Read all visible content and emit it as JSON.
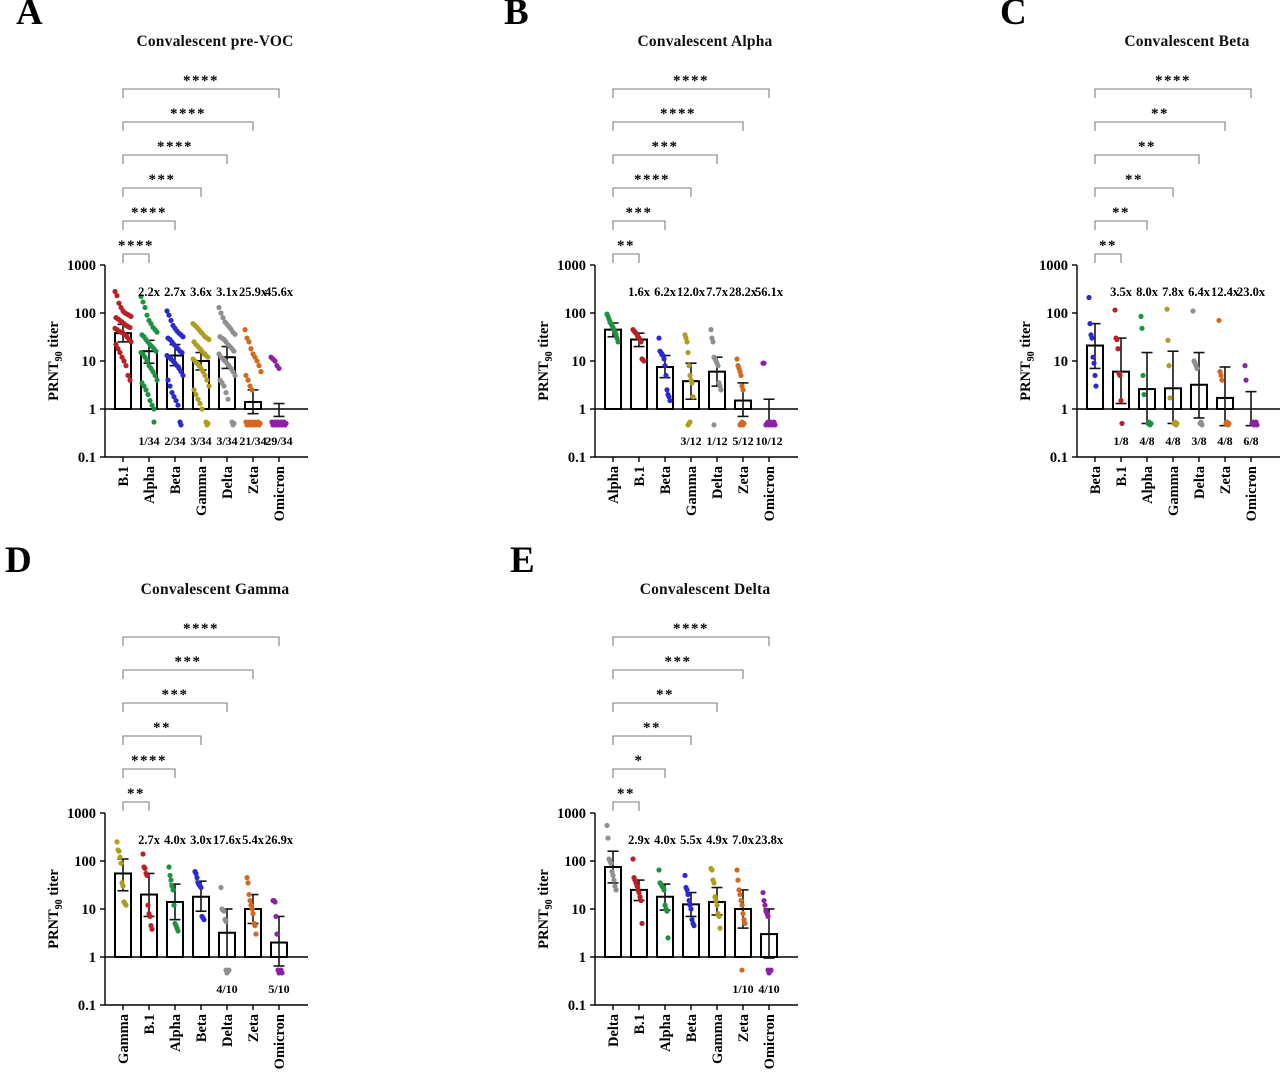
{
  "palette": {
    "red": "#b82025",
    "green": "#1e9240",
    "blue": "#2a2ad2",
    "olive": "#ae9e1c",
    "gray": "#8f8f8f",
    "orange": "#d2691e",
    "purple": "#8e1fa8"
  },
  "axis": {
    "ytick_labels": [
      "1000",
      "100",
      "10",
      "1",
      "0.1"
    ],
    "ytick_values": [
      1000,
      100,
      10,
      1,
      0.1
    ]
  },
  "chart_data": [
    {
      "panel": "A",
      "title": "Convalescent pre-VOC",
      "type": "bar+scatter",
      "yscale": "log",
      "ylim": [
        0.1,
        1000
      ],
      "baseline": 1,
      "lod": 0.5,
      "ylabel": {
        "pre": "PRNT",
        "sub": "90",
        "post": " titer"
      },
      "categories": [
        "B.1",
        "Alpha",
        "Beta",
        "Gamma",
        "Delta",
        "Zeta",
        "Omicron"
      ],
      "colors": [
        "#b82025",
        "#1e9240",
        "#2a2ad2",
        "#ae9e1c",
        "#8f8f8f",
        "#d2691e",
        "#8e1fa8"
      ],
      "bars": [
        38,
        16,
        13,
        10,
        12,
        1.4,
        1.0
      ],
      "err_hi": [
        58,
        27,
        22,
        15,
        20,
        2.5,
        1.3
      ],
      "err_lo": [
        25,
        9,
        8,
        6.5,
        7,
        0.8,
        0.7
      ],
      "fold_labels": [
        null,
        "2.2x",
        "2.7x",
        "3.6x",
        "3.1x",
        "25.9x",
        "45.6x"
      ],
      "below_lod_labels": [
        null,
        "1/34",
        "2/34",
        "3/34",
        "3/34",
        "21/34",
        "29/34"
      ],
      "significance": [
        {
          "to": 1,
          "stars": "****"
        },
        {
          "to": 2,
          "stars": "****"
        },
        {
          "to": 3,
          "stars": "***"
        },
        {
          "to": 4,
          "stars": "****"
        },
        {
          "to": 5,
          "stars": "****"
        },
        {
          "to": 6,
          "stars": "****"
        }
      ],
      "points": [
        [
          280,
          230,
          160,
          130,
          110,
          100,
          95,
          90,
          85,
          80,
          75,
          70,
          65,
          60,
          55,
          52,
          50,
          48,
          45,
          42,
          40,
          38,
          35,
          32,
          28,
          25,
          22,
          18,
          15,
          12,
          10,
          8,
          5,
          4
        ],
        [
          220,
          170,
          130,
          90,
          70,
          60,
          50,
          45,
          40,
          35,
          32,
          28,
          25,
          22,
          20,
          18,
          16,
          15,
          14,
          12,
          10,
          8,
          7,
          6,
          5,
          4,
          3.5,
          3,
          2.5,
          2,
          1.5,
          1.2,
          1,
          0.5
        ],
        [
          110,
          90,
          70,
          55,
          48,
          42,
          38,
          35,
          32,
          30,
          28,
          25,
          22,
          20,
          18,
          16,
          15,
          13,
          12,
          11,
          10,
          9,
          8,
          7,
          6,
          5,
          4,
          3,
          2.2,
          1.8,
          1.5,
          1.2,
          0.5,
          0.5
        ],
        [
          60,
          55,
          50,
          45,
          40,
          36,
          32,
          30,
          28,
          25,
          22,
          20,
          18,
          16,
          14,
          13,
          12,
          11,
          10,
          9,
          8,
          7,
          6,
          5,
          4,
          3,
          2.5,
          2,
          1.6,
          1.3,
          1,
          0.5,
          0.5,
          0.5
        ],
        [
          130,
          100,
          80,
          65,
          58,
          52,
          46,
          40,
          36,
          32,
          30,
          28,
          25,
          22,
          20,
          18,
          16,
          14,
          12,
          11,
          10,
          9,
          8,
          7,
          6,
          5,
          4,
          3.5,
          3,
          2.2,
          1.6,
          0.5,
          0.5,
          0.5
        ],
        [
          45,
          30,
          25,
          18,
          14,
          12,
          10,
          8,
          6,
          5,
          4,
          3,
          2.5,
          0.5,
          0.5,
          0.5,
          0.5,
          0.5,
          0.5,
          0.5,
          0.5,
          0.5,
          0.5,
          0.5,
          0.5,
          0.5,
          0.5,
          0.5,
          0.5,
          0.5,
          0.5,
          0.5,
          0.5,
          0.5
        ],
        [
          12,
          11,
          10,
          8,
          7,
          0.5,
          0.5,
          0.5,
          0.5,
          0.5,
          0.5,
          0.5,
          0.5,
          0.5,
          0.5,
          0.5,
          0.5,
          0.5,
          0.5,
          0.5,
          0.5,
          0.5,
          0.5,
          0.5,
          0.5,
          0.5,
          0.5,
          0.5,
          0.5,
          0.5,
          0.5,
          0.5,
          0.5,
          0.5
        ]
      ]
    },
    {
      "panel": "B",
      "title": "Convalescent Alpha",
      "type": "bar+scatter",
      "yscale": "log",
      "ylim": [
        0.1,
        1000
      ],
      "baseline": 1,
      "lod": 0.5,
      "ylabel": {
        "pre": "PRNT",
        "sub": "90",
        "post": " titer"
      },
      "categories": [
        "Alpha",
        "B.1",
        "Beta",
        "Gamma",
        "Delta",
        "Zeta",
        "Omicron"
      ],
      "colors": [
        "#1e9240",
        "#b82025",
        "#2a2ad2",
        "#ae9e1c",
        "#8f8f8f",
        "#d2691e",
        "#8e1fa8"
      ],
      "bars": [
        45,
        28,
        7.5,
        3.8,
        6,
        1.5,
        1.0
      ],
      "err_hi": [
        62,
        38,
        13,
        9,
        12,
        3.5,
        1.6
      ],
      "err_lo": [
        32,
        20,
        4.5,
        1.6,
        3,
        0.7,
        0.45
      ],
      "fold_labels": [
        null,
        "1.6x",
        "6.2x",
        "12.0x",
        "7.7x",
        "28.2x",
        "56.1x"
      ],
      "below_lod_labels": [
        null,
        null,
        null,
        "3/12",
        "1/12",
        "5/12",
        "10/12"
      ],
      "significance": [
        {
          "to": 1,
          "stars": "**"
        },
        {
          "to": 2,
          "stars": "***"
        },
        {
          "to": 3,
          "stars": "****"
        },
        {
          "to": 4,
          "stars": "***"
        },
        {
          "to": 5,
          "stars": "****"
        },
        {
          "to": 6,
          "stars": "****"
        }
      ],
      "points": [
        [
          95,
          85,
          75,
          65,
          60,
          55,
          50,
          45,
          40,
          35,
          30,
          25
        ],
        [
          45,
          42,
          40,
          38,
          35,
          32,
          30,
          28,
          25,
          11,
          10.5,
          10
        ],
        [
          30,
          16,
          15,
          14,
          13,
          11,
          8,
          5,
          2.5,
          2,
          1.8,
          1.5
        ],
        [
          35,
          30,
          25,
          15,
          8,
          5,
          4,
          3.5,
          1.8,
          0.5,
          0.5,
          0.5
        ],
        [
          45,
          30,
          25,
          12,
          11,
          10,
          9,
          8,
          3.5,
          3,
          2.5,
          0.5
        ],
        [
          11,
          8,
          7,
          6,
          5,
          3,
          2.5,
          0.5,
          0.5,
          0.5,
          0.5,
          0.5
        ],
        [
          9,
          9,
          0.5,
          0.5,
          0.5,
          0.5,
          0.5,
          0.5,
          0.5,
          0.5,
          0.5,
          0.5
        ]
      ]
    },
    {
      "panel": "C",
      "title": "Convalescent Beta",
      "type": "bar+scatter",
      "yscale": "log",
      "ylim": [
        0.1,
        1000
      ],
      "baseline": 1,
      "lod": 0.5,
      "ylabel": {
        "pre": "PRNT",
        "sub": "90",
        "post": " titer"
      },
      "categories": [
        "Beta",
        "B.1",
        "Alpha",
        "Gamma",
        "Delta",
        "Zeta",
        "Omicron"
      ],
      "colors": [
        "#2a2ad2",
        "#b82025",
        "#1e9240",
        "#ae9e1c",
        "#8f8f8f",
        "#d2691e",
        "#8e1fa8"
      ],
      "bars": [
        21,
        6,
        2.6,
        2.7,
        3.2,
        1.7,
        1.0
      ],
      "err_hi": [
        60,
        30,
        15,
        16,
        15,
        7.5,
        2.3
      ],
      "err_lo": [
        7,
        1.3,
        0.5,
        0.5,
        0.65,
        0.45,
        0.45
      ],
      "fold_labels": [
        null,
        "3.5x",
        "8.0x",
        "7.8x",
        "6.4x",
        "12.4x",
        "23.0x"
      ],
      "below_lod_labels": [
        null,
        "1/8",
        "4/8",
        "4/8",
        "3/8",
        "4/8",
        "6/8"
      ],
      "significance": [
        {
          "to": 1,
          "stars": "**"
        },
        {
          "to": 2,
          "stars": "**"
        },
        {
          "to": 3,
          "stars": "**"
        },
        {
          "to": 4,
          "stars": "**"
        },
        {
          "to": 5,
          "stars": "**"
        },
        {
          "to": 6,
          "stars": "****"
        }
      ],
      "points": [
        [
          210,
          60,
          35,
          30,
          12,
          9,
          5,
          3
        ],
        [
          115,
          30,
          28,
          18,
          5.5,
          5,
          1.5,
          0.5
        ],
        [
          85,
          48,
          5,
          2,
          0.5,
          0.5,
          0.5,
          0.5
        ],
        [
          120,
          27,
          8,
          1.7,
          0.5,
          0.5,
          0.5,
          0.5
        ],
        [
          110,
          10,
          9,
          8,
          7,
          0.5,
          0.5,
          0.5
        ],
        [
          70,
          6,
          5,
          4,
          0.5,
          0.5,
          0.5,
          0.5
        ],
        [
          8,
          4,
          0.5,
          0.5,
          0.5,
          0.5,
          0.5,
          0.5
        ]
      ]
    },
    {
      "panel": "D",
      "title": "Convalescent Gamma",
      "type": "bar+scatter",
      "yscale": "log",
      "ylim": [
        0.1,
        1000
      ],
      "baseline": 1,
      "lod": 0.5,
      "ylabel": {
        "pre": "PRNT",
        "sub": "90",
        "post": " titer"
      },
      "categories": [
        "Gamma",
        "B.1",
        "Alpha",
        "Beta",
        "Delta",
        "Zeta",
        "Omicron"
      ],
      "colors": [
        "#ae9e1c",
        "#b82025",
        "#1e9240",
        "#2a2ad2",
        "#8f8f8f",
        "#d2691e",
        "#8e1fa8"
      ],
      "bars": [
        55,
        20,
        14,
        18,
        3.2,
        10,
        2.0
      ],
      "err_hi": [
        110,
        55,
        33,
        38,
        10,
        20,
        7
      ],
      "err_lo": [
        24,
        7,
        6,
        9,
        1.0,
        5,
        0.65
      ],
      "fold_labels": [
        null,
        "2.7x",
        "4.0x",
        "3.0x",
        "17.6x",
        "5.4x",
        "26.9x"
      ],
      "below_lod_labels": [
        null,
        null,
        null,
        null,
        "4/10",
        null,
        "5/10"
      ],
      "significance": [
        {
          "to": 1,
          "stars": "**"
        },
        {
          "to": 2,
          "stars": "****"
        },
        {
          "to": 3,
          "stars": "**"
        },
        {
          "to": 4,
          "stars": "***"
        },
        {
          "to": 5,
          "stars": "***"
        },
        {
          "to": 6,
          "stars": "****"
        }
      ],
      "points": [
        [
          250,
          170,
          160,
          120,
          90,
          35,
          30,
          14,
          13,
          12
        ],
        [
          140,
          75,
          70,
          55,
          50,
          12,
          8,
          7,
          4.5,
          3.8
        ],
        [
          75,
          50,
          40,
          30,
          25,
          12,
          5,
          4.5,
          4,
          3.5
        ],
        [
          60,
          55,
          45,
          35,
          32,
          30,
          28,
          7,
          6.5,
          6
        ],
        [
          28,
          10,
          9.5,
          9,
          6,
          5.5,
          0.5,
          0.5,
          0.5,
          0.5
        ],
        [
          45,
          35,
          20,
          15,
          12,
          10,
          8,
          5,
          4.5,
          3
        ],
        [
          15,
          15,
          14,
          7,
          3,
          0.5,
          0.5,
          0.5,
          0.5,
          0.5
        ]
      ]
    },
    {
      "panel": "E",
      "title": "Convalescent Delta",
      "type": "bar+scatter",
      "yscale": "log",
      "ylim": [
        0.1,
        1000
      ],
      "baseline": 1,
      "lod": 0.5,
      "ylabel": {
        "pre": "PRNT",
        "sub": "90",
        "post": " titer"
      },
      "categories": [
        "Delta",
        "B.1",
        "Alpha",
        "Beta",
        "Gamma",
        "Zeta",
        "Omicron"
      ],
      "colors": [
        "#8f8f8f",
        "#b82025",
        "#1e9240",
        "#2a2ad2",
        "#ae9e1c",
        "#d2691e",
        "#8e1fa8"
      ],
      "bars": [
        75,
        25,
        18,
        12.5,
        14,
        10,
        3.0
      ],
      "err_hi": [
        160,
        40,
        33,
        22,
        28,
        25,
        10
      ],
      "err_lo": [
        35,
        15,
        9.5,
        7,
        7.5,
        4,
        0.95
      ],
      "fold_labels": [
        null,
        "2.9x",
        "4.0x",
        "5.5x",
        "4.9x",
        "7.0x",
        "23.8x"
      ],
      "below_lod_labels": [
        null,
        null,
        null,
        null,
        null,
        "1/10",
        "4/10"
      ],
      "significance": [
        {
          "to": 1,
          "stars": "**"
        },
        {
          "to": 2,
          "stars": "*"
        },
        {
          "to": 3,
          "stars": "**"
        },
        {
          "to": 4,
          "stars": "**"
        },
        {
          "to": 5,
          "stars": "***"
        },
        {
          "to": 6,
          "stars": "****"
        }
      ],
      "points": [
        [
          550,
          300,
          110,
          100,
          90,
          60,
          50,
          40,
          30,
          25
        ],
        [
          110,
          45,
          40,
          35,
          30,
          25,
          22,
          18,
          15,
          5
        ],
        [
          65,
          35,
          33,
          30,
          28,
          25,
          12,
          10,
          9,
          2.5
        ],
        [
          50,
          28,
          25,
          20,
          15,
          12,
          10,
          6,
          5,
          4.5
        ],
        [
          70,
          65,
          40,
          35,
          18,
          15,
          12,
          8,
          7,
          4
        ],
        [
          65,
          40,
          25,
          20,
          15,
          12,
          8,
          6,
          5,
          0.5
        ],
        [
          22,
          15,
          12,
          9,
          8,
          7,
          0.5,
          0.5,
          0.5,
          0.5
        ]
      ]
    }
  ]
}
